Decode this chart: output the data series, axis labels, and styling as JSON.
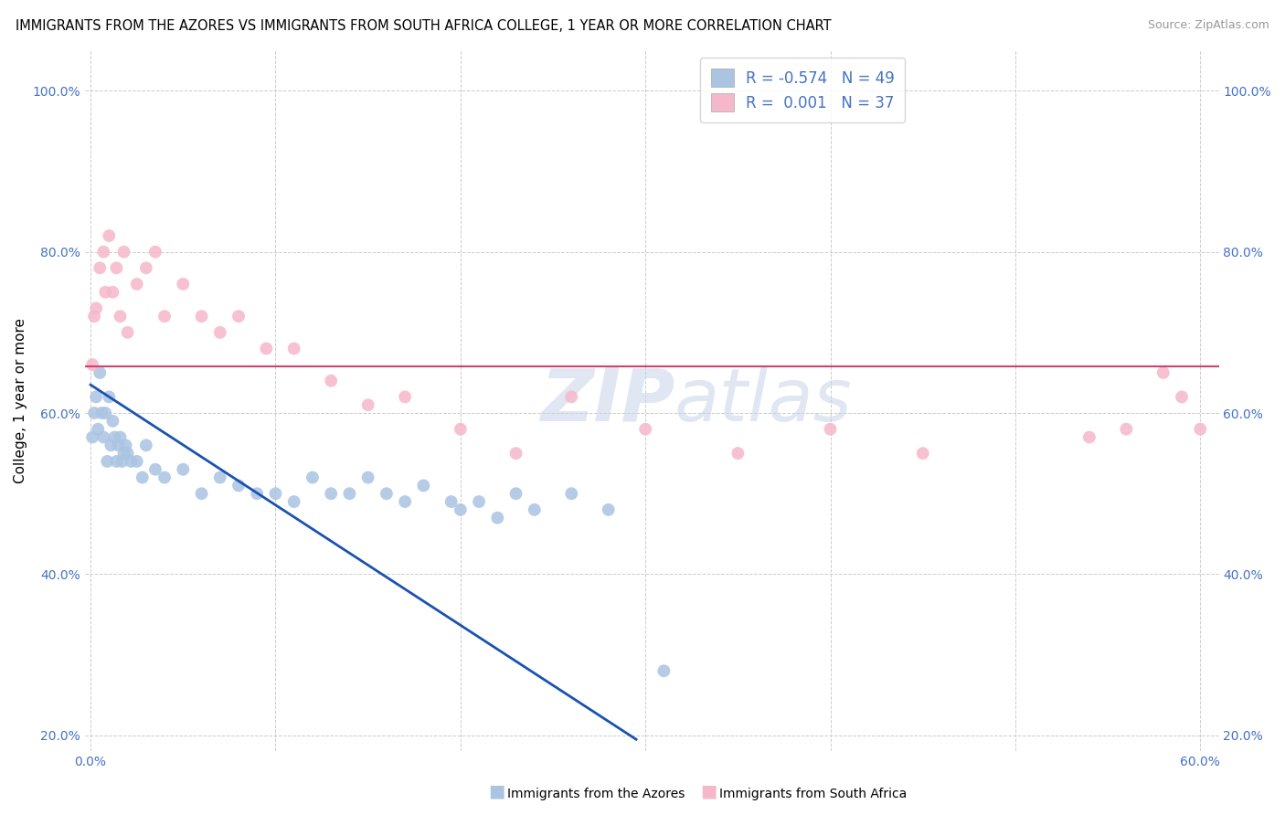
{
  "title": "IMMIGRANTS FROM THE AZORES VS IMMIGRANTS FROM SOUTH AFRICA COLLEGE, 1 YEAR OR MORE CORRELATION CHART",
  "source": "Source: ZipAtlas.com",
  "xlabel_bottom_azores": "Immigrants from the Azores",
  "xlabel_bottom_sa": "Immigrants from South Africa",
  "ylabel": "College, 1 year or more",
  "xlim": [
    -0.003,
    0.61
  ],
  "ylim": [
    0.18,
    1.05
  ],
  "xticks": [
    0.0,
    0.1,
    0.2,
    0.3,
    0.4,
    0.5,
    0.6
  ],
  "xticklabels_ends": [
    "0.0%",
    "60.0%"
  ],
  "yticks": [
    0.2,
    0.4,
    0.6,
    0.8,
    1.0
  ],
  "yticklabels": [
    "20.0%",
    "40.0%",
    "60.0%",
    "80.0%",
    "100.0%"
  ],
  "legend_r1": "R = -0.574",
  "legend_n1": "N = 49",
  "legend_r2": "R =  0.001",
  "legend_n2": "N = 37",
  "color_azores": "#aac4e2",
  "color_south_africa": "#f5b8ca",
  "trend_color_azores": "#1a52b0",
  "trend_color_sa": "#d44070",
  "watermark_zip": "ZIP",
  "watermark_atlas": "atlas",
  "azores_x": [
    0.001,
    0.002,
    0.003,
    0.004,
    0.005,
    0.006,
    0.007,
    0.008,
    0.009,
    0.01,
    0.011,
    0.012,
    0.013,
    0.014,
    0.015,
    0.016,
    0.017,
    0.018,
    0.019,
    0.02,
    0.022,
    0.025,
    0.028,
    0.03,
    0.035,
    0.04,
    0.05,
    0.06,
    0.07,
    0.08,
    0.09,
    0.1,
    0.11,
    0.12,
    0.13,
    0.14,
    0.15,
    0.16,
    0.17,
    0.18,
    0.195,
    0.2,
    0.21,
    0.22,
    0.23,
    0.24,
    0.26,
    0.28,
    0.31
  ],
  "azores_y": [
    0.57,
    0.6,
    0.62,
    0.58,
    0.65,
    0.6,
    0.57,
    0.6,
    0.54,
    0.62,
    0.56,
    0.59,
    0.57,
    0.54,
    0.56,
    0.57,
    0.54,
    0.55,
    0.56,
    0.55,
    0.54,
    0.54,
    0.52,
    0.56,
    0.53,
    0.52,
    0.53,
    0.5,
    0.52,
    0.51,
    0.5,
    0.5,
    0.49,
    0.52,
    0.5,
    0.5,
    0.52,
    0.5,
    0.49,
    0.51,
    0.49,
    0.48,
    0.49,
    0.47,
    0.5,
    0.48,
    0.5,
    0.48,
    0.28
  ],
  "sa_x": [
    0.001,
    0.002,
    0.003,
    0.005,
    0.007,
    0.008,
    0.01,
    0.012,
    0.014,
    0.016,
    0.018,
    0.02,
    0.025,
    0.03,
    0.035,
    0.04,
    0.05,
    0.06,
    0.07,
    0.08,
    0.095,
    0.11,
    0.13,
    0.15,
    0.17,
    0.2,
    0.23,
    0.26,
    0.3,
    0.35,
    0.4,
    0.45,
    0.54,
    0.56,
    0.58,
    0.59,
    0.6
  ],
  "sa_y": [
    0.66,
    0.72,
    0.73,
    0.78,
    0.8,
    0.75,
    0.82,
    0.75,
    0.78,
    0.72,
    0.8,
    0.7,
    0.76,
    0.78,
    0.8,
    0.72,
    0.76,
    0.72,
    0.7,
    0.72,
    0.68,
    0.68,
    0.64,
    0.61,
    0.62,
    0.58,
    0.55,
    0.62,
    0.58,
    0.55,
    0.58,
    0.55,
    0.57,
    0.58,
    0.65,
    0.62,
    0.58
  ],
  "trend_azores_x0": 0.0,
  "trend_azores_y0": 0.635,
  "trend_azores_x1": 0.295,
  "trend_azores_y1": 0.195,
  "trend_sa_y": 0.658,
  "background_color": "#ffffff",
  "grid_color": "#cccccc",
  "title_fontsize": 10.5,
  "axis_label_fontsize": 11,
  "tick_fontsize": 10,
  "tick_color": "#4472c4",
  "legend_fontsize": 12,
  "scatter_size": 100
}
